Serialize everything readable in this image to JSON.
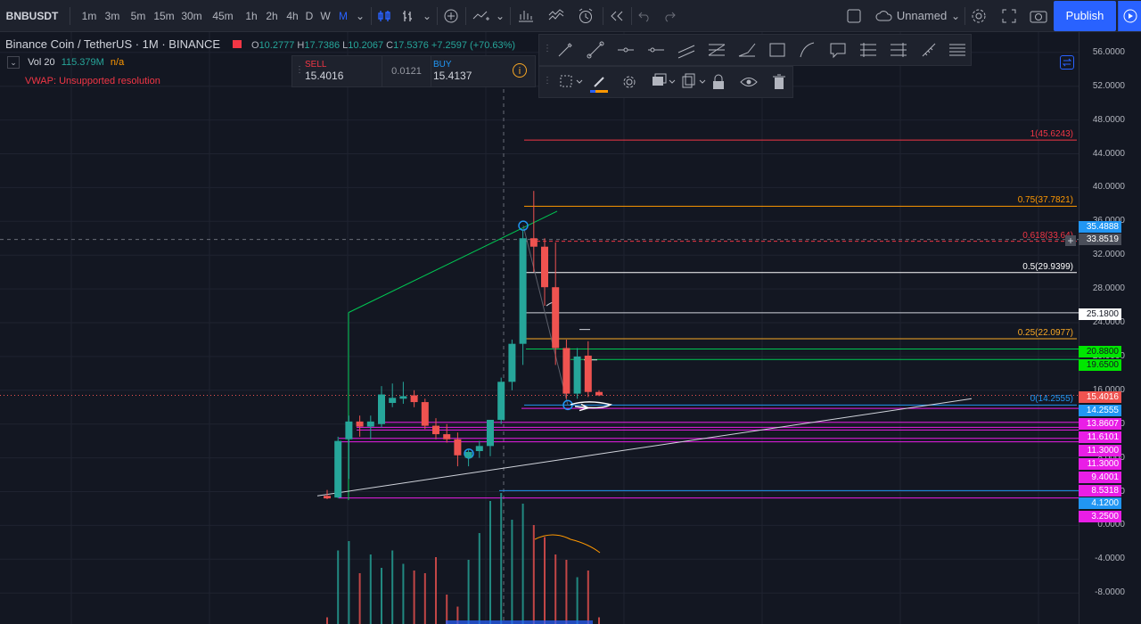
{
  "topbar": {
    "symbol": "BNBUSDT",
    "timeframes": [
      "1m",
      "3m",
      "5m",
      "15m",
      "30m",
      "45m",
      "1h",
      "2h",
      "4h",
      "D",
      "W",
      "M"
    ],
    "active_timeframe": "M",
    "layout_name": "Unnamed",
    "publish_label": "Publish"
  },
  "legend": {
    "title": "Binance Coin / TetherUS · 1M · BINANCE",
    "o_label": "O",
    "o_value": "10.2777",
    "h_label": "H",
    "h_value": "17.7386",
    "l_label": "L",
    "l_value": "10.2067",
    "c_label": "C",
    "c_value": "17.5376",
    "change": "+7.2597 (+70.63%)",
    "vol_label": "Vol 20",
    "vol_value": "115.379M",
    "vol_ma": "n/a",
    "vwap_error": "VWAP: Unsupported resolution"
  },
  "trade": {
    "sell_label": "SELL",
    "sell_price": "15.4016",
    "spread": "0.0121",
    "buy_label": "BUY",
    "buy_price": "15.4137"
  },
  "y_axis": {
    "ticks": [
      "56.0000",
      "52.0000",
      "48.0000",
      "44.0000",
      "40.0000",
      "36.0000",
      "32.0000",
      "28.0000",
      "24.0000",
      "20.0000",
      "16.0000",
      "12.0000",
      "8.0000",
      "4.0000",
      "0.0000",
      "-4.0000",
      "-8.0000"
    ]
  },
  "price_tags": [
    {
      "value": "35.4888",
      "color": "#2196f3"
    },
    {
      "value": "33.8519",
      "color": "#4a4e59"
    },
    {
      "value": "25.1800",
      "color": "#ffffff",
      "text_color": "#131722"
    },
    {
      "value": "20.8800",
      "color": "#00e600",
      "text_color": "#131722"
    },
    {
      "value": "19.6500",
      "color": "#00e600",
      "text_color": "#131722"
    },
    {
      "value": "15.4016",
      "color": "#ef5350"
    },
    {
      "value": "14.2555",
      "color": "#2196f3"
    },
    {
      "value": "13.8607",
      "color": "#e91ee6"
    },
    {
      "value": "11.6101",
      "color": "#e91ee6"
    },
    {
      "value": "11.3000",
      "color": "#e91ee6"
    },
    {
      "value": "11.3000",
      "color": "#e91ee6"
    },
    {
      "value": "9.4001",
      "color": "#e91ee6"
    },
    {
      "value": "8.5318",
      "color": "#e91ee6"
    },
    {
      "value": "4.1200",
      "color": "#2196f3"
    },
    {
      "value": "3.2500",
      "color": "#e91ee6"
    }
  ],
  "fib_levels": [
    {
      "label": "1(45.6243)",
      "value": 45.6243,
      "color": "#f23645"
    },
    {
      "label": "0.75(37.7821)",
      "value": 37.7821,
      "color": "#ff9800"
    },
    {
      "label": "0.618(33.64)",
      "value": 33.64,
      "color": "#f23645"
    },
    {
      "label": "0.5(29.9399)",
      "value": 29.9399,
      "color": "#ffffff"
    },
    {
      "label": "0.25(22.0977)",
      "value": 22.0977,
      "color": "#f9a825"
    },
    {
      "label": "0(14.2555)",
      "value": 14.2555,
      "color": "#2196f3"
    }
  ],
  "chart_data": {
    "type": "candlestick",
    "y_range": [
      -10,
      58
    ],
    "candles": [
      {
        "o": 3.5,
        "h": 4.2,
        "l": 3.1,
        "c": 3.2
      },
      {
        "o": 3.3,
        "h": 10.5,
        "l": 3.2,
        "c": 10.0
      },
      {
        "o": 10.2,
        "h": 13.0,
        "l": 5.5,
        "c": 12.3
      },
      {
        "o": 12.3,
        "h": 13.0,
        "l": 10.5,
        "c": 11.7
      },
      {
        "o": 11.7,
        "h": 13.0,
        "l": 10.2,
        "c": 12.3
      },
      {
        "o": 12.0,
        "h": 16.5,
        "l": 11.6,
        "c": 15.5
      },
      {
        "o": 14.5,
        "h": 16.8,
        "l": 14.0,
        "c": 15.1
      },
      {
        "o": 15.0,
        "h": 17.0,
        "l": 14.4,
        "c": 15.3
      },
      {
        "o": 15.4,
        "h": 16.0,
        "l": 14.0,
        "c": 14.6
      },
      {
        "o": 14.6,
        "h": 15.0,
        "l": 11.4,
        "c": 11.8
      },
      {
        "o": 11.8,
        "h": 12.7,
        "l": 10.2,
        "c": 10.8
      },
      {
        "o": 10.8,
        "h": 12.0,
        "l": 9.8,
        "c": 10.2
      },
      {
        "o": 10.2,
        "h": 11.0,
        "l": 7.0,
        "c": 8.3
      },
      {
        "o": 8.0,
        "h": 9.0,
        "l": 7.0,
        "c": 8.7
      },
      {
        "o": 8.8,
        "h": 10.0,
        "l": 8.0,
        "c": 9.4
      },
      {
        "o": 9.4,
        "h": 12.5,
        "l": 8.2,
        "c": 12.5
      },
      {
        "o": 12.5,
        "h": 17.5,
        "l": 12.0,
        "c": 17.0
      },
      {
        "o": 17.0,
        "h": 22.0,
        "l": 16.0,
        "c": 21.5
      },
      {
        "o": 21.5,
        "h": 35.0,
        "l": 19.0,
        "c": 34.0
      },
      {
        "o": 34.0,
        "h": 39.6,
        "l": 30.0,
        "c": 33.0
      },
      {
        "o": 33.0,
        "h": 34.0,
        "l": 26.0,
        "c": 28.2
      },
      {
        "o": 28.2,
        "h": 33.5,
        "l": 19.0,
        "c": 21.0
      },
      {
        "o": 21.0,
        "h": 22.0,
        "l": 15.0,
        "c": 15.6
      },
      {
        "o": 15.6,
        "h": 21.0,
        "l": 15.0,
        "c": 20.0
      },
      {
        "o": 20.1,
        "h": 21.8,
        "l": 15.2,
        "c": 15.8
      },
      {
        "o": 15.8,
        "h": 16.0,
        "l": 15.3,
        "c": 15.4
      }
    ],
    "volume_scale": [
      0,
      1
    ],
    "volumes": [
      0.05,
      0.55,
      0.62,
      0.38,
      0.52,
      0.42,
      0.55,
      0.45,
      0.4,
      0.38,
      0.5,
      0.22,
      0.13,
      0.48,
      0.68,
      0.92,
      0.98,
      0.78,
      0.9,
      0.74,
      0.65,
      0.52,
      0.48,
      0.35,
      0.4,
      0.05
    ]
  }
}
